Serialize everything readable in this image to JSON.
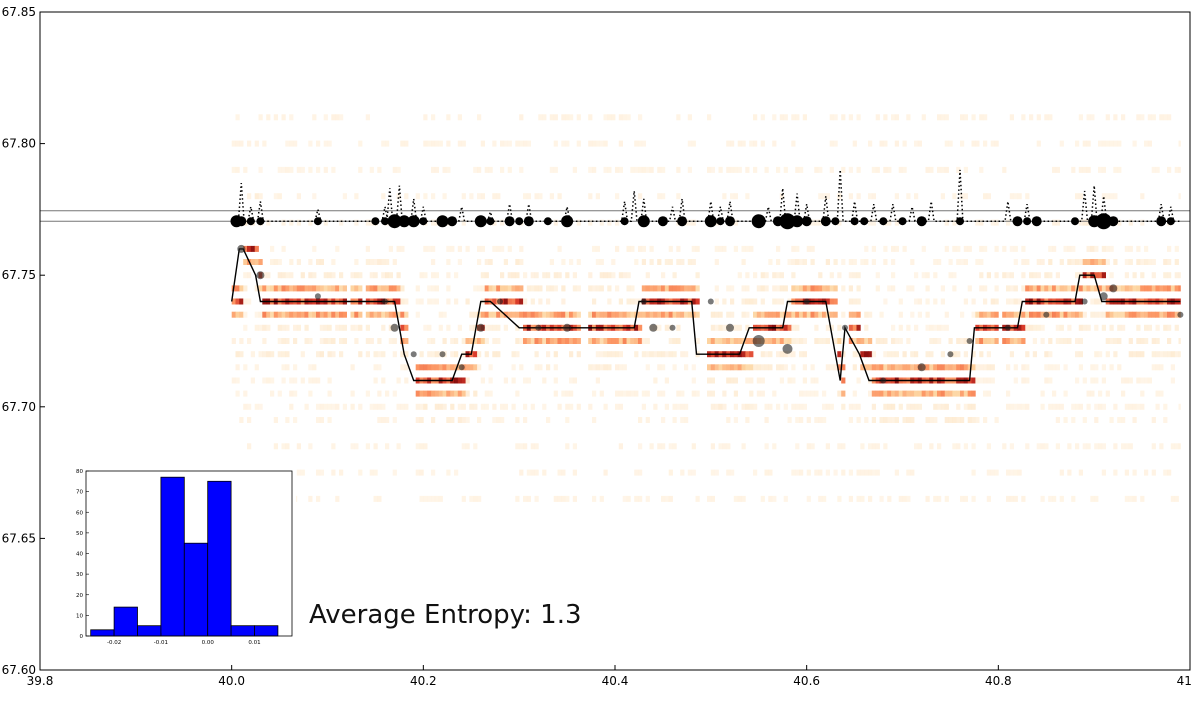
{
  "chart_data": [
    {
      "type": "heatmap",
      "xlim": [
        39.8,
        41.0
      ],
      "ylim": [
        67.6,
        67.85
      ],
      "x_ticks": [
        "39.8",
        "40.0",
        "40.2",
        "40.4",
        "40.6",
        "40.8",
        "41.0"
      ],
      "y_ticks": [
        "67.60",
        "67.65",
        "67.70",
        "67.75",
        "67.80",
        "67.85"
      ],
      "x_tick_values": [
        39.8,
        40.0,
        40.2,
        40.4,
        40.6,
        40.8,
        41.0
      ],
      "y_tick_values": [
        67.6,
        67.65,
        67.7,
        67.75,
        67.8,
        67.85
      ],
      "grid": false,
      "colormap": "OrRd",
      "heatmap_x_range": [
        40.0,
        40.99
      ],
      "heatmap_bin_y": [
        67.665,
        67.675,
        67.685,
        67.695,
        67.7,
        67.705,
        67.71,
        67.715,
        67.72,
        67.725,
        67.73,
        67.735,
        67.74,
        67.745,
        67.75,
        67.755,
        67.76,
        67.77,
        67.78,
        67.79,
        67.8,
        67.81
      ],
      "horizontal_lines": [
        67.7705,
        67.7745
      ],
      "step_line": {
        "x": [
          40.0,
          40.008,
          40.012,
          40.025,
          40.03,
          40.17,
          40.175,
          40.18,
          40.19,
          40.2,
          40.21,
          40.23,
          40.24,
          40.25,
          40.255,
          40.26,
          40.27,
          40.3,
          40.42,
          40.425,
          40.48,
          40.485,
          40.53,
          40.54,
          40.575,
          40.58,
          40.62,
          40.63,
          40.635,
          40.64,
          40.655,
          40.665,
          40.77,
          40.775,
          40.82,
          40.825,
          40.88,
          40.885,
          40.9,
          40.908,
          40.915,
          40.99
        ],
        "y": [
          67.74,
          67.76,
          67.76,
          67.75,
          67.74,
          67.74,
          67.73,
          67.72,
          67.71,
          67.71,
          67.71,
          67.71,
          67.72,
          67.72,
          67.73,
          67.74,
          67.74,
          67.73,
          67.73,
          67.74,
          67.74,
          67.72,
          67.72,
          67.73,
          67.73,
          67.74,
          67.74,
          67.72,
          67.71,
          67.73,
          67.72,
          67.71,
          67.71,
          67.73,
          67.73,
          67.74,
          67.74,
          67.75,
          67.75,
          67.74,
          67.74,
          67.74
        ]
      },
      "dotted_line": {
        "baseline": 67.7705,
        "spikes": [
          [
            40.01,
            67.785
          ],
          [
            40.02,
            67.776
          ],
          [
            40.03,
            67.778
          ],
          [
            40.09,
            67.775
          ],
          [
            40.16,
            67.776
          ],
          [
            40.165,
            67.783
          ],
          [
            40.175,
            67.784
          ],
          [
            40.19,
            67.779
          ],
          [
            40.2,
            67.776
          ],
          [
            40.24,
            67.776
          ],
          [
            40.27,
            67.774
          ],
          [
            40.29,
            67.777
          ],
          [
            40.31,
            67.777
          ],
          [
            40.35,
            67.776
          ],
          [
            40.41,
            67.778
          ],
          [
            40.42,
            67.782
          ],
          [
            40.43,
            67.779
          ],
          [
            40.46,
            67.776
          ],
          [
            40.47,
            67.779
          ],
          [
            40.5,
            67.778
          ],
          [
            40.51,
            67.776
          ],
          [
            40.52,
            67.778
          ],
          [
            40.56,
            67.776
          ],
          [
            40.575,
            67.783
          ],
          [
            40.59,
            67.781
          ],
          [
            40.6,
            67.777
          ],
          [
            40.62,
            67.78
          ],
          [
            40.635,
            67.79
          ],
          [
            40.65,
            67.778
          ],
          [
            40.67,
            67.777
          ],
          [
            40.69,
            67.777
          ],
          [
            40.71,
            67.776
          ],
          [
            40.73,
            67.778
          ],
          [
            40.76,
            67.79
          ],
          [
            40.81,
            67.778
          ],
          [
            40.83,
            67.777
          ],
          [
            40.89,
            67.782
          ],
          [
            40.9,
            67.784
          ],
          [
            40.91,
            67.78
          ],
          [
            40.97,
            67.777
          ],
          [
            40.98,
            67.776
          ]
        ]
      },
      "scatter_black": {
        "y": 67.7705,
        "x": [
          40.005,
          40.01,
          40.02,
          40.03,
          40.09,
          40.15,
          40.16,
          40.17,
          40.18,
          40.19,
          40.2,
          40.22,
          40.23,
          40.26,
          40.27,
          40.29,
          40.3,
          40.31,
          40.33,
          40.35,
          40.41,
          40.43,
          40.45,
          40.47,
          40.5,
          40.51,
          40.52,
          40.55,
          40.57,
          40.58,
          40.59,
          40.6,
          40.62,
          40.63,
          40.65,
          40.66,
          40.68,
          40.7,
          40.72,
          40.76,
          40.82,
          40.83,
          40.84,
          40.88,
          40.9,
          40.91,
          40.92,
          40.97,
          40.98
        ],
        "size": [
          6,
          5,
          4,
          4,
          4,
          4,
          4,
          7,
          6,
          6,
          4,
          6,
          5,
          6,
          4,
          5,
          4,
          5,
          4,
          6,
          4,
          6,
          5,
          5,
          6,
          4,
          5,
          7,
          5,
          8,
          6,
          5,
          5,
          4,
          4,
          4,
          4,
          4,
          5,
          4,
          5,
          4,
          5,
          4,
          6,
          8,
          5,
          5,
          4
        ]
      },
      "scatter_gray": {
        "x": [
          40.01,
          40.03,
          40.09,
          40.16,
          40.17,
          40.19,
          40.22,
          40.24,
          40.26,
          40.28,
          40.32,
          40.35,
          40.43,
          40.44,
          40.46,
          40.5,
          40.52,
          40.55,
          40.58,
          40.6,
          40.64,
          40.68,
          40.72,
          40.75,
          40.77,
          40.81,
          40.85,
          40.89,
          40.91,
          40.92,
          40.99
        ],
        "y": [
          67.76,
          67.75,
          67.742,
          67.74,
          67.73,
          67.72,
          67.72,
          67.715,
          67.73,
          67.74,
          67.73,
          67.73,
          67.74,
          67.73,
          67.73,
          67.74,
          67.73,
          67.725,
          67.722,
          67.74,
          67.73,
          67.71,
          67.715,
          67.72,
          67.725,
          67.73,
          67.735,
          67.74,
          67.742,
          67.745,
          67.735
        ],
        "size": [
          4,
          4,
          3,
          3,
          4,
          3,
          3,
          3,
          4,
          3,
          3,
          4,
          3,
          4,
          3,
          3,
          4,
          6,
          5,
          3,
          3,
          3,
          4,
          3,
          3,
          3,
          3,
          3,
          4,
          4,
          3
        ]
      }
    },
    {
      "type": "bar",
      "title": "",
      "x_ticks": [
        "-0.02",
        "-0.01",
        "0.00",
        "0.01"
      ],
      "x_tick_values": [
        -0.02,
        -0.01,
        0.0,
        0.01
      ],
      "y_ticks": [
        "0",
        "10",
        "20",
        "30",
        "40",
        "50",
        "60",
        "70",
        "80"
      ],
      "y_tick_values": [
        0,
        10,
        20,
        30,
        40,
        50,
        60,
        70,
        80
      ],
      "xlim": [
        -0.026,
        0.018
      ],
      "ylim": [
        0,
        80
      ],
      "bin_edges": [
        -0.025,
        -0.02,
        -0.015,
        -0.01,
        -0.005,
        0.0,
        0.005,
        0.01,
        0.015
      ],
      "values": [
        3,
        14,
        5,
        77,
        45,
        75,
        5,
        5
      ],
      "color": "#0000ff"
    }
  ],
  "annotation": {
    "text": "Average Entropy: 1.3"
  }
}
